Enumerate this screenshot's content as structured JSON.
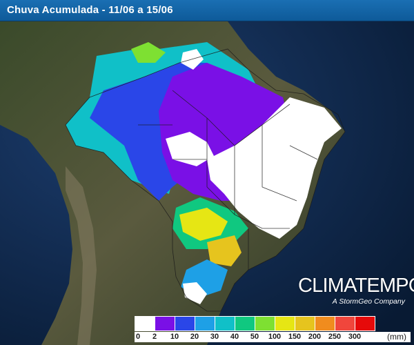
{
  "header": {
    "title": "Chuva Acumulada - 11/06 a 15/06"
  },
  "brand": {
    "name": "CLIMATEMPO",
    "tagline": "A StormGeo Company"
  },
  "legend": {
    "unit": "(mm)",
    "colors": [
      "#ffffff",
      "#7a10e6",
      "#2a46e8",
      "#1ea0e6",
      "#10c0c8",
      "#10c880",
      "#7ee032",
      "#e6e614",
      "#e6c41e",
      "#f08c1e",
      "#f0463c",
      "#e60a0a"
    ],
    "ticks": [
      "0",
      "2",
      "10",
      "20",
      "30",
      "40",
      "50",
      "100",
      "150",
      "200",
      "250",
      "300"
    ]
  }
}
